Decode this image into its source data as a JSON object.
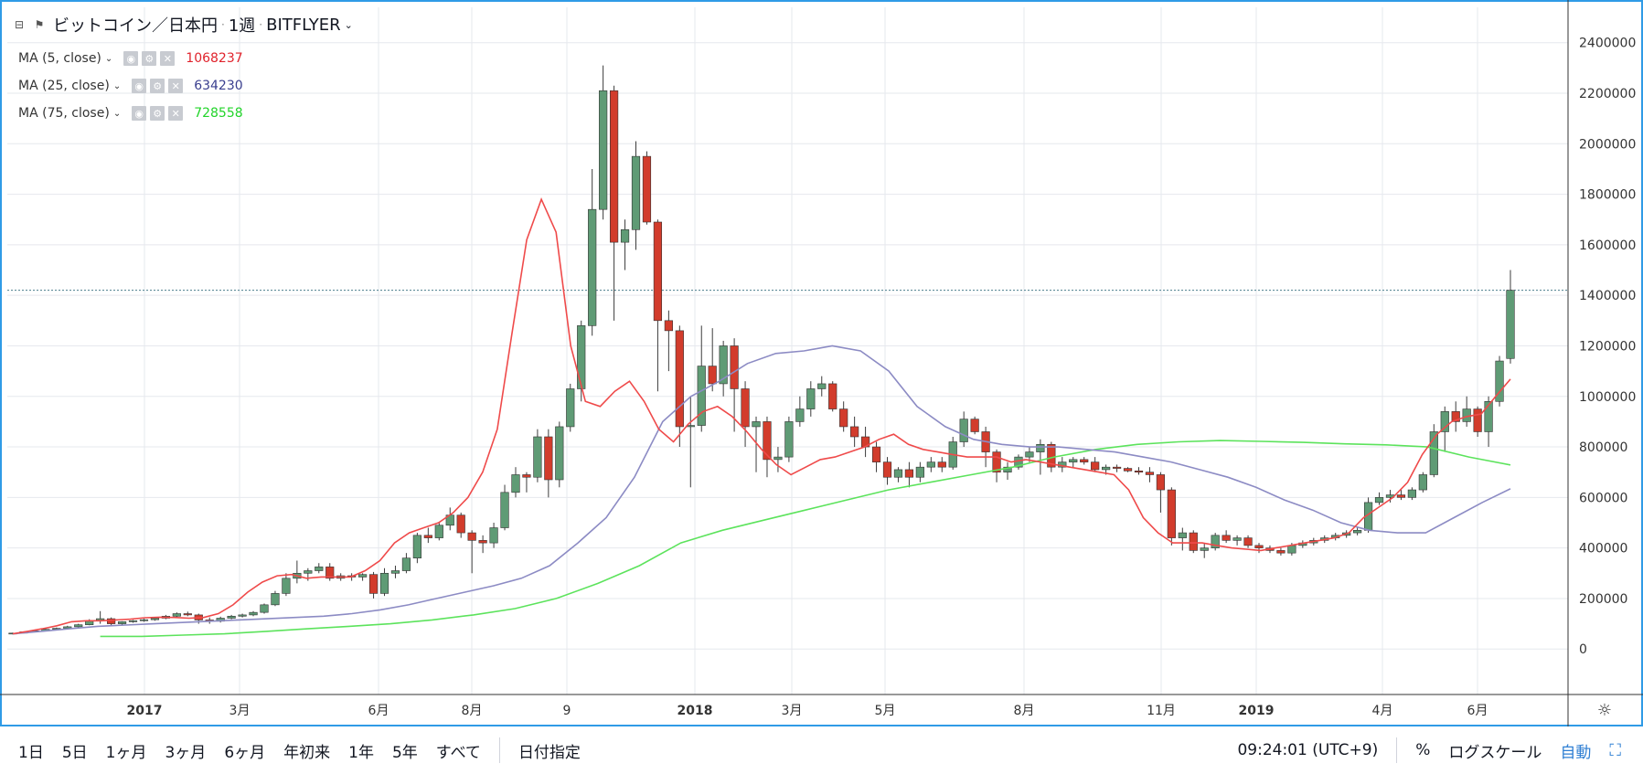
{
  "header": {
    "collapse_icon": "collapse-square-icon",
    "flag_icon": "flag-icon",
    "symbol": "ビットコイン／日本円",
    "interval": "1週",
    "exchange": "BITFLYER"
  },
  "ma_lines": [
    {
      "label": "MA (5, close)",
      "value": "1068237",
      "color": "#e0232c"
    },
    {
      "label": "MA (25, close)",
      "value": "634230",
      "color": "#3a3f8f"
    },
    {
      "label": "MA (75, close)",
      "value": "728558",
      "color": "#22d42a"
    }
  ],
  "colors": {
    "up_candle": "#5f9b75",
    "down_candle": "#d23c2c",
    "ma5": "#ef4a4a",
    "ma25": "#8c8bc4",
    "ma75": "#5ce35c",
    "frame": "#2f9be6",
    "accent": "#2f7fd3"
  },
  "chart_data": {
    "type": "candlestick",
    "y_axis": {
      "ticks": [
        0,
        200000,
        400000,
        600000,
        800000,
        1000000,
        1200000,
        1400000,
        1600000,
        1800000,
        2000000,
        2200000,
        2400000
      ],
      "range": [
        -180000,
        2540000
      ]
    },
    "x_axis": {
      "labels": [
        "2017",
        "3月",
        "6月",
        "8月",
        "9",
        "2018",
        "3月",
        "5月",
        "8月",
        "11月",
        "2019",
        "4月",
        "6月"
      ]
    },
    "current_price_line": 1420000,
    "candles_ohlc": [
      [
        60000,
        65000,
        58000,
        63000
      ],
      [
        63000,
        70000,
        62000,
        68000
      ],
      [
        68000,
        75000,
        66000,
        72000
      ],
      [
        72000,
        80000,
        70000,
        78000
      ],
      [
        78000,
        85000,
        76000,
        82000
      ],
      [
        82000,
        92000,
        80000,
        88000
      ],
      [
        88000,
        100000,
        86000,
        96000
      ],
      [
        96000,
        118000,
        94000,
        112000
      ],
      [
        112000,
        150000,
        100000,
        120000
      ],
      [
        120000,
        125000,
        90000,
        100000
      ],
      [
        100000,
        110000,
        95000,
        108000
      ],
      [
        108000,
        115000,
        104000,
        112000
      ],
      [
        112000,
        120000,
        108000,
        116000
      ],
      [
        116000,
        125000,
        112000,
        122000
      ],
      [
        122000,
        135000,
        118000,
        130000
      ],
      [
        130000,
        145000,
        125000,
        140000
      ],
      [
        140000,
        148000,
        130000,
        135000
      ],
      [
        135000,
        140000,
        100000,
        115000
      ],
      [
        115000,
        125000,
        100000,
        110000
      ],
      [
        110000,
        128000,
        105000,
        122000
      ],
      [
        122000,
        135000,
        118000,
        130000
      ],
      [
        130000,
        140000,
        125000,
        135000
      ],
      [
        135000,
        150000,
        130000,
        145000
      ],
      [
        145000,
        180000,
        140000,
        175000
      ],
      [
        175000,
        230000,
        170000,
        220000
      ],
      [
        220000,
        300000,
        210000,
        280000
      ],
      [
        280000,
        350000,
        260000,
        300000
      ],
      [
        300000,
        320000,
        270000,
        310000
      ],
      [
        310000,
        340000,
        300000,
        325000
      ],
      [
        325000,
        340000,
        270000,
        280000
      ],
      [
        280000,
        300000,
        270000,
        290000
      ],
      [
        290000,
        300000,
        270000,
        285000
      ],
      [
        285000,
        300000,
        270000,
        295000
      ],
      [
        295000,
        305000,
        200000,
        220000
      ],
      [
        220000,
        320000,
        210000,
        300000
      ],
      [
        300000,
        330000,
        280000,
        310000
      ],
      [
        310000,
        380000,
        300000,
        360000
      ],
      [
        360000,
        460000,
        340000,
        450000
      ],
      [
        450000,
        480000,
        420000,
        440000
      ],
      [
        440000,
        500000,
        430000,
        490000
      ],
      [
        490000,
        560000,
        470000,
        530000
      ],
      [
        530000,
        540000,
        440000,
        460000
      ],
      [
        460000,
        470000,
        300000,
        430000
      ],
      [
        430000,
        450000,
        380000,
        420000
      ],
      [
        420000,
        500000,
        400000,
        480000
      ],
      [
        480000,
        650000,
        470000,
        620000
      ],
      [
        620000,
        720000,
        600000,
        690000
      ],
      [
        690000,
        700000,
        620000,
        680000
      ],
      [
        680000,
        870000,
        660000,
        840000
      ],
      [
        840000,
        870000,
        600000,
        670000
      ],
      [
        670000,
        900000,
        640000,
        880000
      ],
      [
        880000,
        1050000,
        860000,
        1030000
      ],
      [
        1030000,
        1300000,
        980000,
        1280000
      ],
      [
        1280000,
        1900000,
        1240000,
        1740000
      ],
      [
        1740000,
        2310000,
        1700000,
        2210000
      ],
      [
        2210000,
        2230000,
        1300000,
        1610000
      ],
      [
        1610000,
        1700000,
        1500000,
        1660000
      ],
      [
        1660000,
        2010000,
        1580000,
        1950000
      ],
      [
        1950000,
        1970000,
        1680000,
        1690000
      ],
      [
        1690000,
        1700000,
        1020000,
        1300000
      ],
      [
        1300000,
        1340000,
        1100000,
        1260000
      ],
      [
        1260000,
        1280000,
        800000,
        880000
      ],
      [
        880000,
        1000000,
        640000,
        885000
      ],
      [
        885000,
        1280000,
        860000,
        1120000
      ],
      [
        1120000,
        1270000,
        1020000,
        1050000
      ],
      [
        1050000,
        1220000,
        1000000,
        1200000
      ],
      [
        1200000,
        1230000,
        860000,
        1030000
      ],
      [
        1030000,
        1060000,
        800000,
        880000
      ],
      [
        880000,
        920000,
        700000,
        900000
      ],
      [
        900000,
        920000,
        680000,
        750000
      ],
      [
        750000,
        800000,
        700000,
        760000
      ],
      [
        760000,
        920000,
        740000,
        900000
      ],
      [
        900000,
        1000000,
        880000,
        950000
      ],
      [
        950000,
        1060000,
        920000,
        1030000
      ],
      [
        1030000,
        1080000,
        1000000,
        1050000
      ],
      [
        1050000,
        1060000,
        940000,
        950000
      ],
      [
        950000,
        980000,
        860000,
        880000
      ],
      [
        880000,
        920000,
        800000,
        840000
      ],
      [
        840000,
        880000,
        760000,
        800000
      ],
      [
        800000,
        820000,
        700000,
        740000
      ],
      [
        740000,
        760000,
        650000,
        680000
      ],
      [
        680000,
        720000,
        660000,
        710000
      ],
      [
        710000,
        740000,
        640000,
        680000
      ],
      [
        680000,
        740000,
        660000,
        720000
      ],
      [
        720000,
        760000,
        700000,
        740000
      ],
      [
        740000,
        760000,
        700000,
        720000
      ],
      [
        720000,
        840000,
        710000,
        820000
      ],
      [
        820000,
        940000,
        800000,
        910000
      ],
      [
        910000,
        920000,
        850000,
        860000
      ],
      [
        860000,
        880000,
        720000,
        780000
      ],
      [
        780000,
        790000,
        660000,
        700000
      ],
      [
        700000,
        740000,
        670000,
        720000
      ],
      [
        720000,
        770000,
        710000,
        760000
      ],
      [
        760000,
        800000,
        740000,
        780000
      ],
      [
        780000,
        830000,
        690000,
        810000
      ],
      [
        810000,
        820000,
        700000,
        720000
      ],
      [
        720000,
        760000,
        700000,
        740000
      ],
      [
        740000,
        760000,
        720000,
        750000
      ],
      [
        750000,
        760000,
        730000,
        740000
      ],
      [
        740000,
        760000,
        700000,
        710000
      ],
      [
        710000,
        730000,
        690000,
        720000
      ],
      [
        720000,
        730000,
        700000,
        715000
      ],
      [
        715000,
        720000,
        700000,
        705000
      ],
      [
        705000,
        720000,
        690000,
        700000
      ],
      [
        700000,
        720000,
        660000,
        690000
      ],
      [
        690000,
        700000,
        540000,
        630000
      ],
      [
        630000,
        640000,
        410000,
        440000
      ],
      [
        440000,
        480000,
        390000,
        460000
      ],
      [
        460000,
        470000,
        380000,
        390000
      ],
      [
        390000,
        420000,
        360000,
        400000
      ],
      [
        400000,
        460000,
        390000,
        450000
      ],
      [
        450000,
        470000,
        420000,
        430000
      ],
      [
        430000,
        450000,
        410000,
        440000
      ],
      [
        440000,
        450000,
        400000,
        410000
      ],
      [
        410000,
        420000,
        380000,
        400000
      ],
      [
        400000,
        410000,
        380000,
        390000
      ],
      [
        390000,
        400000,
        370000,
        380000
      ],
      [
        380000,
        420000,
        370000,
        410000
      ],
      [
        410000,
        430000,
        400000,
        420000
      ],
      [
        420000,
        440000,
        410000,
        430000
      ],
      [
        430000,
        450000,
        420000,
        440000
      ],
      [
        440000,
        460000,
        430000,
        450000
      ],
      [
        450000,
        470000,
        440000,
        460000
      ],
      [
        460000,
        480000,
        450000,
        470000
      ],
      [
        470000,
        600000,
        460000,
        580000
      ],
      [
        580000,
        620000,
        570000,
        600000
      ],
      [
        600000,
        630000,
        580000,
        610000
      ],
      [
        610000,
        630000,
        590000,
        600000
      ],
      [
        600000,
        640000,
        590000,
        630000
      ],
      [
        630000,
        700000,
        620000,
        690000
      ],
      [
        690000,
        890000,
        680000,
        860000
      ],
      [
        860000,
        960000,
        780000,
        940000
      ],
      [
        940000,
        980000,
        860000,
        900000
      ],
      [
        900000,
        1000000,
        880000,
        950000
      ],
      [
        950000,
        960000,
        840000,
        860000
      ],
      [
        860000,
        1000000,
        800000,
        980000
      ],
      [
        980000,
        1160000,
        960000,
        1140000
      ],
      [
        1150000,
        1500000,
        1130000,
        1420000
      ]
    ],
    "ma5": [
      60000,
      70000,
      80000,
      92000,
      108000,
      112000,
      112000,
      115000,
      118000,
      124000,
      126000,
      125000,
      122000,
      125000,
      140000,
      175000,
      225000,
      265000,
      290000,
      295000,
      280000,
      285000,
      285000,
      285000,
      310000,
      350000,
      420000,
      460000,
      480000,
      500000,
      540000,
      600000,
      700000,
      870000,
      1250000,
      1620000,
      1780000,
      1650000,
      1200000,
      980000,
      960000,
      1020000,
      1060000,
      980000,
      870000,
      820000,
      890000,
      940000,
      960000,
      920000,
      860000,
      790000,
      730000,
      690000,
      720000,
      750000,
      760000,
      780000,
      800000,
      830000,
      850000,
      810000,
      790000,
      780000,
      770000,
      760000,
      760000,
      760000,
      740000,
      750000,
      740000,
      730000,
      720000,
      710000,
      700000,
      690000,
      630000,
      520000,
      460000,
      420000,
      420000,
      420000,
      410000,
      400000,
      395000,
      390000,
      400000,
      410000,
      420000,
      430000,
      440000,
      460000,
      520000,
      560000,
      600000,
      660000,
      770000,
      850000,
      900000,
      920000,
      930000,
      1000000,
      1068237
    ],
    "ma25": [
      60000,
      70000,
      80000,
      90000,
      95000,
      100000,
      105000,
      110000,
      115000,
      120000,
      125000,
      130000,
      140000,
      155000,
      175000,
      200000,
      225000,
      250000,
      280000,
      330000,
      420000,
      520000,
      680000,
      900000,
      1000000,
      1060000,
      1130000,
      1170000,
      1180000,
      1200000,
      1180000,
      1100000,
      960000,
      880000,
      830000,
      810000,
      800000,
      800000,
      790000,
      780000,
      760000,
      740000,
      710000,
      680000,
      640000,
      590000,
      550000,
      500000,
      470000,
      460000,
      460000,
      520000,
      580000,
      634230
    ],
    "ma75": [
      50000,
      50000,
      55000,
      60000,
      70000,
      80000,
      90000,
      100000,
      115000,
      135000,
      160000,
      200000,
      260000,
      330000,
      420000,
      470000,
      510000,
      550000,
      590000,
      630000,
      660000,
      690000,
      720000,
      760000,
      790000,
      810000,
      820000,
      825000,
      822000,
      818000,
      812000,
      808000,
      800000,
      760000,
      728558
    ]
  },
  "bottom_bar": {
    "ranges": [
      "1日",
      "5日",
      "1ヶ月",
      "3ヶ月",
      "6ヶ月",
      "年初来",
      "1年",
      "5年",
      "すべて"
    ],
    "date_label": "日付指定",
    "clock": "09:24:01 (UTC+9)",
    "percent": "%",
    "log_scale": "ログスケール",
    "auto": "自動",
    "fullscreen_icon": "fullscreen-icon",
    "settings_icon": "gear-icon"
  }
}
